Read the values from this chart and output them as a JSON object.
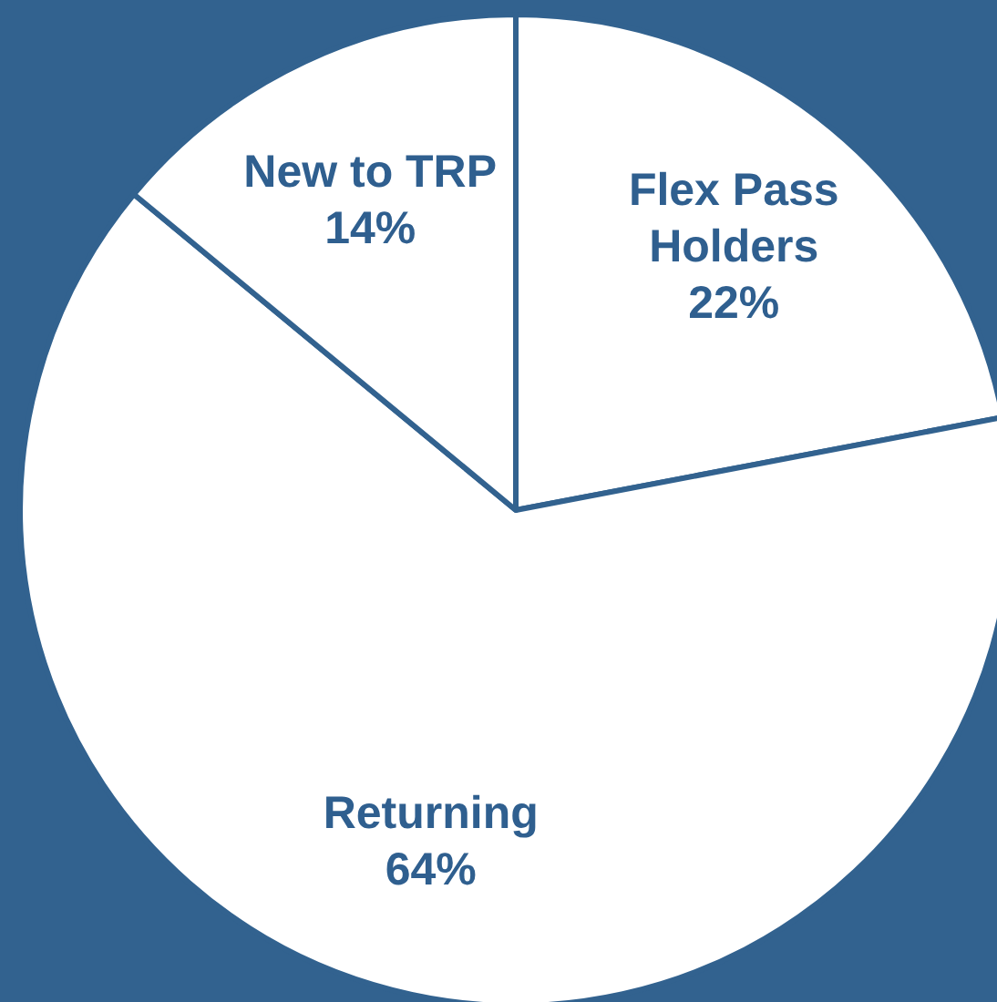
{
  "chart_data": {
    "type": "pie",
    "categories": [
      "Flex Pass Holders",
      "Returning",
      "New to TRP"
    ],
    "values": [
      22,
      64,
      14
    ],
    "value_labels": [
      "22%",
      "64%",
      "14%"
    ],
    "colors": [
      "#ffffff",
      "#ffffff",
      "#ffffff"
    ]
  }
}
